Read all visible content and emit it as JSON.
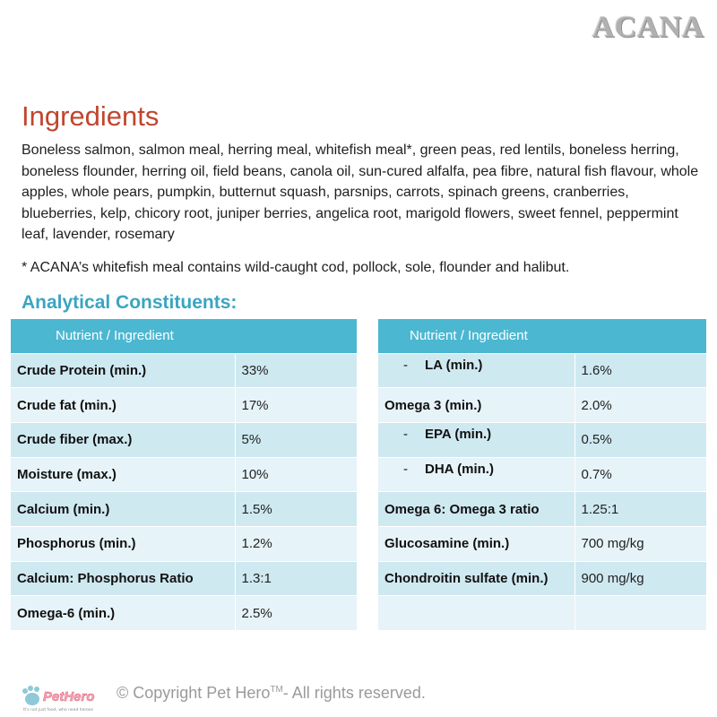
{
  "brand": {
    "logo_text": "ACANA"
  },
  "ingredients": {
    "title": "Ingredients",
    "text": "Boneless salmon, salmon meal, herring meal, whitefish meal*, green peas, red lentils, boneless herring, boneless flounder, herring oil, field beans, canola oil, sun-cured alfalfa, pea fibre, natural fish flavour, whole apples, whole pears, pumpkin, butternut squash, parsnips, carrots, spinach greens, cranberries, blueberries, kelp, chicory root, juniper berries, angelica root, marigold flowers, sweet fennel, peppermint leaf, lavender, rosemary",
    "note": "* ACANA’s whitefish meal contains wild-caught cod, pollock, sole, flounder and halibut."
  },
  "analytical": {
    "title": "Analytical Constituents:",
    "left_table": {
      "header": "Nutrient / Ingredient",
      "rows": [
        {
          "name": "Crude Protein (min.)",
          "value": "33%"
        },
        {
          "name": "Crude fat (min.)",
          "value": "17%"
        },
        {
          "name": "Crude fiber (max.)",
          "value": "5%"
        },
        {
          "name": "Moisture (max.)",
          "value": "10%"
        },
        {
          "name": "Calcium (min.)",
          "value": "1.5%"
        },
        {
          "name": "Phosphorus (min.)",
          "value": "1.2%"
        },
        {
          "name": "Calcium: Phosphorus Ratio",
          "value": "1.3:1"
        },
        {
          "name": "Omega-6 (min.)",
          "value": "2.5%"
        }
      ]
    },
    "right_table": {
      "header": "Nutrient / Ingredient",
      "dash": "-",
      "rows": [
        {
          "name": "LA (min.)",
          "value": "1.6%"
        },
        {
          "name": "Omega 3 (min.)",
          "value": "2.0%"
        },
        {
          "name": "EPA (min.)",
          "value": "0.5%"
        },
        {
          "name": "DHA (min.)",
          "value": "0.7%"
        },
        {
          "name": "Omega 6: Omega 3 ratio",
          "value": "1.25:1"
        },
        {
          "name": "Glucosamine (min.)",
          "value": "700 mg/kg"
        },
        {
          "name": "Chondroitin sulfate (min.)",
          "value": "900 mg/kg"
        },
        {
          "name": "",
          "value": ""
        }
      ]
    }
  },
  "footer": {
    "logo_text": "PetHero",
    "tagline": "It's not just food, who need heroes",
    "copyright_prefix": "© Copyright Pet Hero",
    "copyright_tm": "TM",
    "copyright_suffix": "- All rights reserved."
  },
  "colors": {
    "title_red": "#c0462d",
    "accent_blue": "#4cb7d1",
    "row_dark": "#cfe9f1",
    "row_light": "#e6f3f8"
  }
}
